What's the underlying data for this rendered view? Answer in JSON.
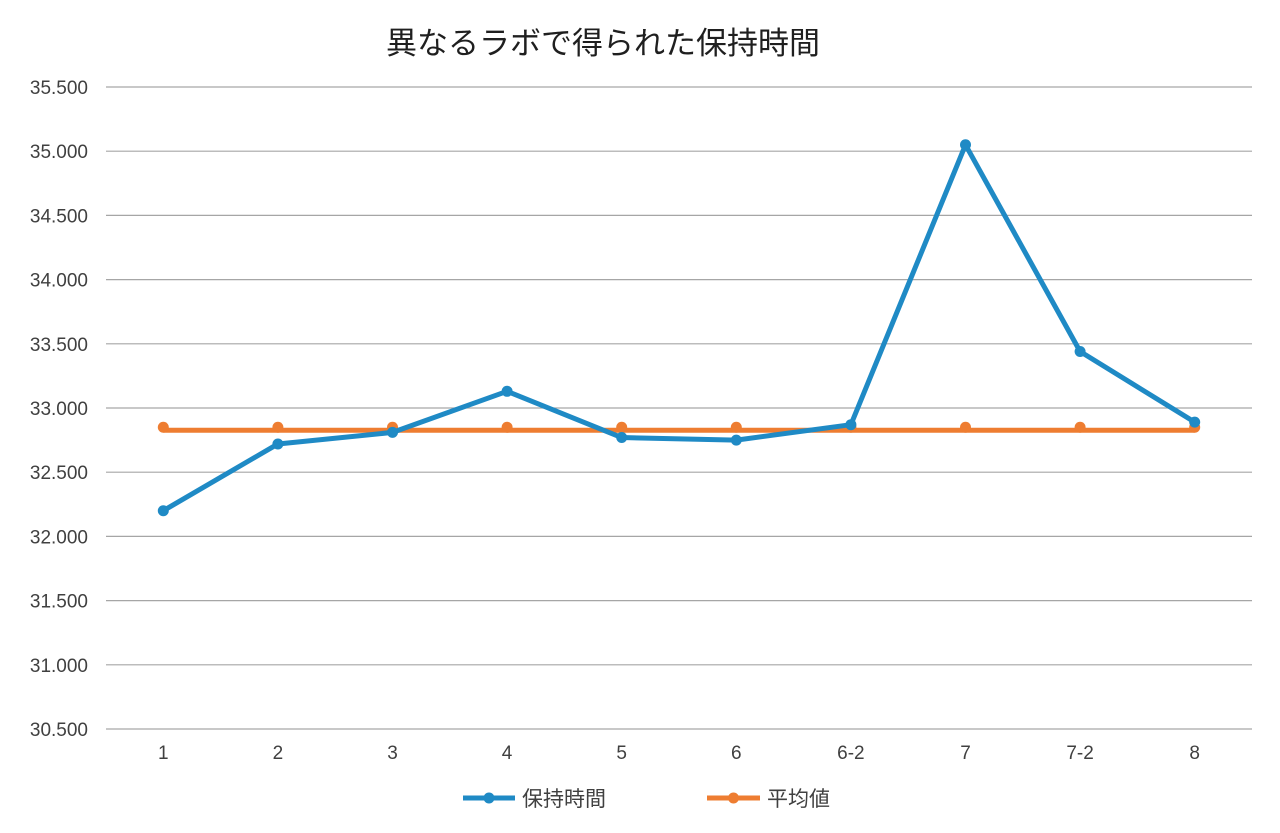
{
  "chart_data": {
    "type": "line",
    "title": "異なるラボで得られた保持時間",
    "xlabel": "",
    "ylabel": "",
    "categories": [
      "1",
      "2",
      "3",
      "4",
      "5",
      "6",
      "6-2",
      "7",
      "7-2",
      "8"
    ],
    "ylim": [
      30.5,
      35.5
    ],
    "ytick_values": [
      30.5,
      31.0,
      31.5,
      32.0,
      32.5,
      33.0,
      33.5,
      34.0,
      34.5,
      35.0,
      35.5
    ],
    "ytick_labels": [
      "30.500",
      "31.000",
      "31.500",
      "32.000",
      "32.500",
      "33.000",
      "33.500",
      "34.000",
      "34.500",
      "35.000",
      "35.500"
    ],
    "grid": true,
    "legend_position": "bottom",
    "series": [
      {
        "name": "保持時間",
        "color": "#1f8ac5",
        "values": [
          32.2,
          32.72,
          32.81,
          33.13,
          32.77,
          32.75,
          32.87,
          35.05,
          33.44,
          32.89
        ]
      },
      {
        "name": "平均値",
        "color": "#ee7d31",
        "values": [
          32.85,
          32.85,
          32.85,
          32.85,
          32.85,
          32.85,
          32.85,
          32.85,
          32.85,
          32.85
        ]
      }
    ]
  }
}
